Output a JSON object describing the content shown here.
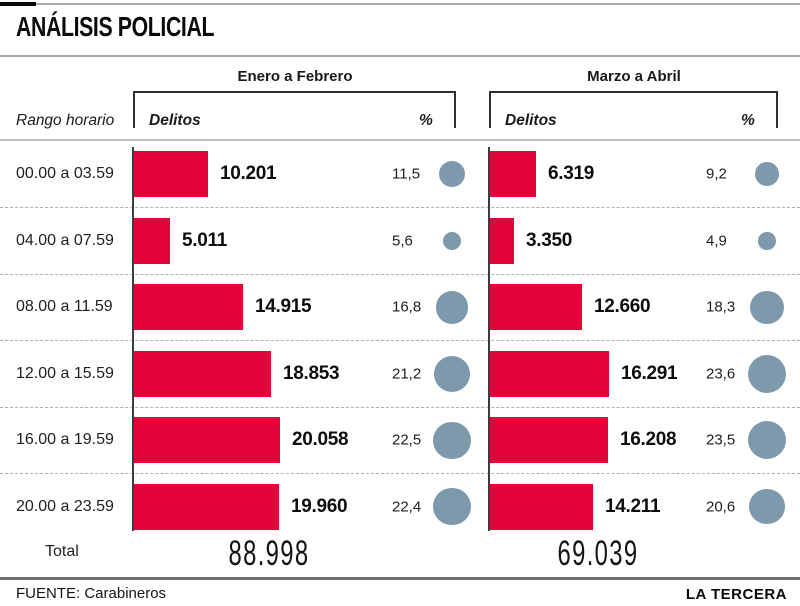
{
  "title": "ANÁLISIS POLICIAL",
  "header": {
    "row_label": "Rango horario",
    "groups": [
      {
        "period": "Enero a Febrero",
        "delitos_label": "Delitos",
        "pct_label": "%"
      },
      {
        "period": "Marzo a Abril",
        "delitos_label": "Delitos",
        "pct_label": "%"
      }
    ]
  },
  "rows": [
    {
      "range": "00.00 a 03.59",
      "g1": {
        "delitos": "10.201",
        "pct": "11,5"
      },
      "g2": {
        "delitos": "6.319",
        "pct": "9,2"
      }
    },
    {
      "range": "04.00 a 07.59",
      "g1": {
        "delitos": "5.011",
        "pct": "5,6"
      },
      "g2": {
        "delitos": "3.350",
        "pct": "4,9"
      }
    },
    {
      "range": "08.00 a 11.59",
      "g1": {
        "delitos": "14.915",
        "pct": "16,8"
      },
      "g2": {
        "delitos": "12.660",
        "pct": "18,3"
      }
    },
    {
      "range": "12.00 a 15.59",
      "g1": {
        "delitos": "18.853",
        "pct": "21,2"
      },
      "g2": {
        "delitos": "16.291",
        "pct": "23,6"
      }
    },
    {
      "range": "16.00 a 19.59",
      "g1": {
        "delitos": "20.058",
        "pct": "22,5"
      },
      "g2": {
        "delitos": "16.208",
        "pct": "23,5"
      }
    },
    {
      "range": "20.00 a 23.59",
      "g1": {
        "delitos": "19.960",
        "pct": "22,4"
      },
      "g2": {
        "delitos": "14.211",
        "pct": "20,6"
      }
    }
  ],
  "total": {
    "label": "Total",
    "g1": "88.998",
    "g2": "69.039"
  },
  "footer": {
    "source": "FUENTE: Carabineros",
    "brand": "LA TERCERA"
  },
  "colors": {
    "bar": "#e4023a",
    "bubble": "#7e99ab",
    "dash": "#a9b2b6"
  },
  "chart_data": {
    "type": "bar",
    "title": "ANÁLISIS POLICIAL",
    "orientation": "horizontal",
    "categories": [
      "00.00 a 03.59",
      "04.00 a 07.59",
      "08.00 a 11.59",
      "12.00 a 15.59",
      "16.00 a 19.59",
      "20.00 a 23.59"
    ],
    "series": [
      {
        "name": "Enero a Febrero — Delitos",
        "values": [
          10201,
          5011,
          14915,
          18853,
          20058,
          19960
        ],
        "pct": [
          11.5,
          5.6,
          16.8,
          21.2,
          22.5,
          22.4
        ],
        "total": 88998
      },
      {
        "name": "Marzo a Abril — Delitos",
        "values": [
          6319,
          3350,
          12660,
          16291,
          16208,
          14211
        ],
        "pct": [
          9.2,
          4.9,
          18.3,
          23.6,
          23.5,
          20.6
        ],
        "total": 69039
      }
    ],
    "xlabel": "Delitos",
    "ylabel": "Rango horario",
    "bubble_metric": "% del total del periodo (área del círculo proporcional al %)",
    "grid": "dashed row separators",
    "source": "FUENTE: Carabineros"
  }
}
